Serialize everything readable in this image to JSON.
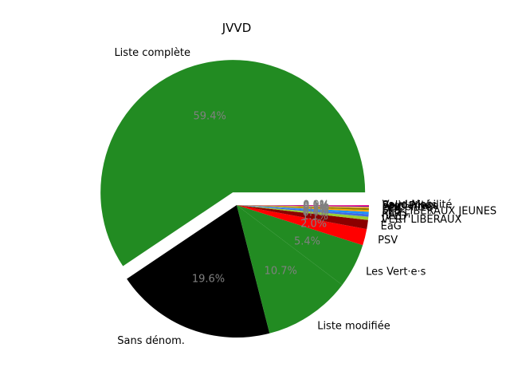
{
  "chart_data": {
    "type": "pie",
    "title": "JVVD",
    "explode_first": true,
    "legend": "none",
    "slices": [
      {
        "label": "Liste complète",
        "value": 59.4,
        "pct_label": "59.4%",
        "color": "#228b22"
      },
      {
        "label": "Sans dénom.",
        "value": 19.6,
        "pct_label": "19.6%",
        "color": "#000000"
      },
      {
        "label": "Liste modifiée",
        "value": 10.7,
        "pct_label": "10.7%",
        "color": "#228b22"
      },
      {
        "label": "Les Vert·e·s",
        "value": 5.4,
        "pct_label": "5.4%",
        "color": "#228b22"
      },
      {
        "label": "PSV",
        "value": 2.0,
        "pct_label": "2.0%",
        "color": "#ff0000"
      },
      {
        "label": "EaG",
        "value": 1.1,
        "pct_label": "1.1%",
        "color": "#8b0000"
      },
      {
        "label": "VERT'LIBÉRAUX",
        "value": 0.4,
        "pct_label": "0.4%",
        "color": "#9acd32"
      },
      {
        "label": "JVVD",
        "value": 0.3,
        "pct_label": "0.3%",
        "color": "#4169e1"
      },
      {
        "label": "PLR",
        "value": 0.3,
        "pct_label": "0.3%",
        "color": "#1e90ff"
      },
      {
        "label": "LES LIBÉRAUX JEUNES",
        "value": 0.2,
        "pct_label": "0.2%",
        "color": "#ffa500"
      },
      {
        "label": "UDC",
        "value": 0.2,
        "pct_label": "0.2%",
        "color": "#808000"
      },
      {
        "label": "PDC",
        "value": 0.1,
        "pct_label": "0.1%",
        "color": "#ff8c00"
      },
      {
        "label": "Le Centre",
        "value": 0.1,
        "pct_label": "0.1%",
        "color": "#d2b48c"
      },
      {
        "label": "Parti Pirate",
        "value": 0.1,
        "pct_label": "0.1%",
        "color": "#800080"
      },
      {
        "label": "Solidarités",
        "value": 0.1,
        "pct_label": "0.1%",
        "color": "#ff1493"
      },
      {
        "label": "Vaud Mobilité",
        "value": 0.0,
        "pct_label": "0.0%",
        "color": "#bdb76b"
      }
    ]
  }
}
